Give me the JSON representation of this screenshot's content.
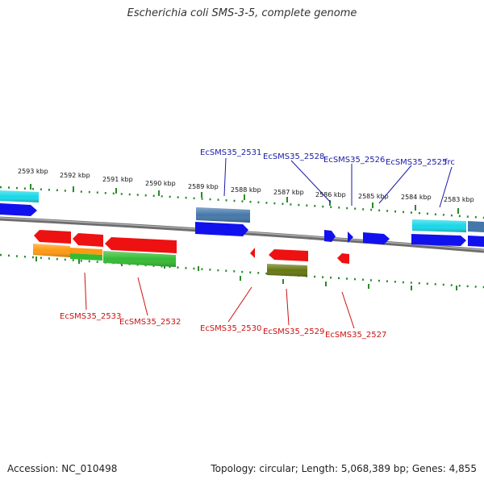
{
  "title": "Escherichia coli SMS-3-5, complete genome",
  "footer": {
    "accession": "Accession: NC_010498",
    "summary": "Topology: circular; Length: 5,068,389 bp; Genes: 4,855"
  },
  "colors": {
    "backbone": "#7a7a7a",
    "tick": "#2a8a2a",
    "label_top": "#1a1aa8",
    "label_bottom": "#cc1111",
    "red": "#ee1111",
    "blue": "#1111ee",
    "cyan": "#18d8e8",
    "steelblue": "#4477aa",
    "orange": "#ff9911",
    "green": "#33bb33",
    "olive": "#667711"
  },
  "scale_labels": [
    "2593 kbp",
    "2592 kbp",
    "2591 kbp",
    "2590 kbp",
    "2589 kbp",
    "2588 kbp",
    "2587 kbp",
    "2586 kbp",
    "2585 kbp",
    "2584 kbp",
    "2583 kbp"
  ],
  "top_labels": [
    "EcSMS35_2531",
    "EcSMS35_2528",
    "EcSMS35_2526",
    "EcSMS35_2525",
    "frc"
  ],
  "bottom_labels": [
    "EcSMS35_2533",
    "EcSMS35_2532",
    "EcSMS35_2530",
    "EcSMS35_2529",
    "EcSMS35_2527"
  ]
}
